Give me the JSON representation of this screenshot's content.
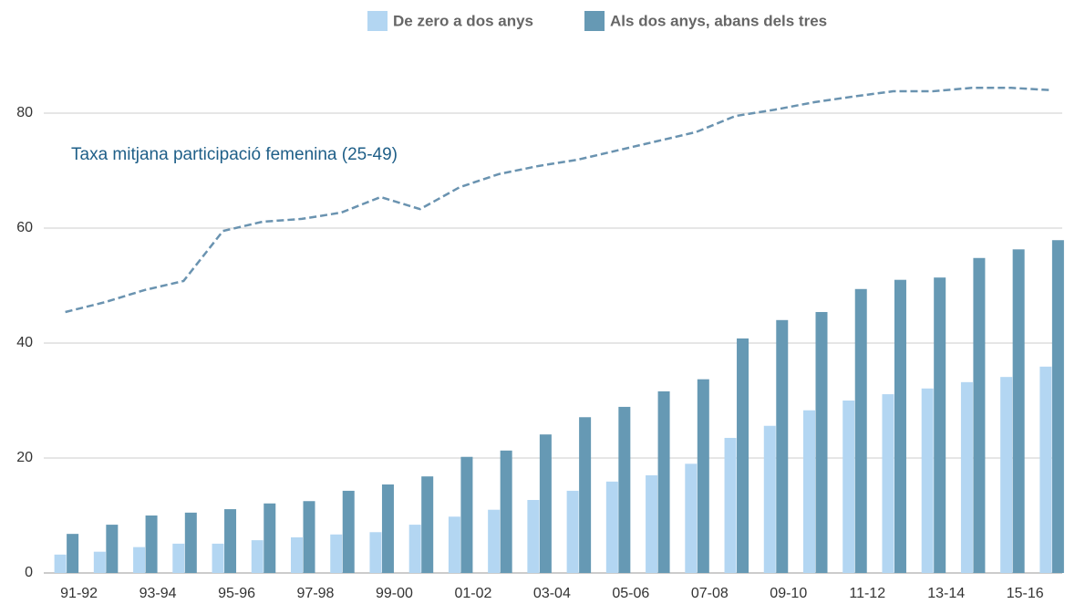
{
  "chart_data": {
    "type": "bar",
    "categories": [
      "91-92",
      null,
      "93-94",
      null,
      "95-96",
      null,
      "97-98",
      null,
      "99-00",
      null,
      "01-02",
      null,
      "03-04",
      null,
      "05-06",
      null,
      "07-08",
      null,
      "09-10",
      null,
      "11-12",
      null,
      "13-14",
      null,
      "15-16",
      null
    ],
    "series": [
      {
        "name": "De zero a dos anys",
        "color": "#b3d6f2",
        "values": [
          3.2,
          3.7,
          4.5,
          5.1,
          5.1,
          5.7,
          6.2,
          6.7,
          7.1,
          8.4,
          9.8,
          11,
          12.7,
          14.3,
          15.9,
          17,
          19,
          23.5,
          25.6,
          28.3,
          30,
          31.1,
          32.1,
          33.2,
          34.1,
          35.9
        ]
      },
      {
        "name": "Als dos anys, abans dels tres",
        "color": "#6699b4",
        "values": [
          6.8,
          8.4,
          10,
          10.5,
          11.1,
          12.1,
          12.5,
          14.3,
          15.4,
          16.8,
          20.2,
          21.3,
          24.1,
          27.1,
          28.9,
          31.6,
          33.7,
          40.8,
          44,
          45.4,
          49.4,
          51,
          51.4,
          54.8,
          56.3,
          57.9
        ]
      },
      {
        "type": "line",
        "name": "Taxa mitjana participació femenina (25-49)",
        "color": "#6a93b0",
        "dashed": true,
        "values": [
          45.4,
          47.1,
          49.2,
          50.8,
          59.5,
          61.1,
          61.6,
          62.7,
          65.4,
          63.3,
          67.1,
          69.4,
          70.8,
          71.9,
          73.5,
          75.1,
          76.7,
          79.5,
          80.6,
          81.9,
          82.9,
          83.8,
          83.8,
          84.4,
          84.4,
          84
        ]
      }
    ],
    "ylim": [
      0,
      80.1
    ],
    "yticks": [
      0,
      20,
      40,
      60,
      80
    ],
    "grid": true,
    "legend": "top"
  }
}
